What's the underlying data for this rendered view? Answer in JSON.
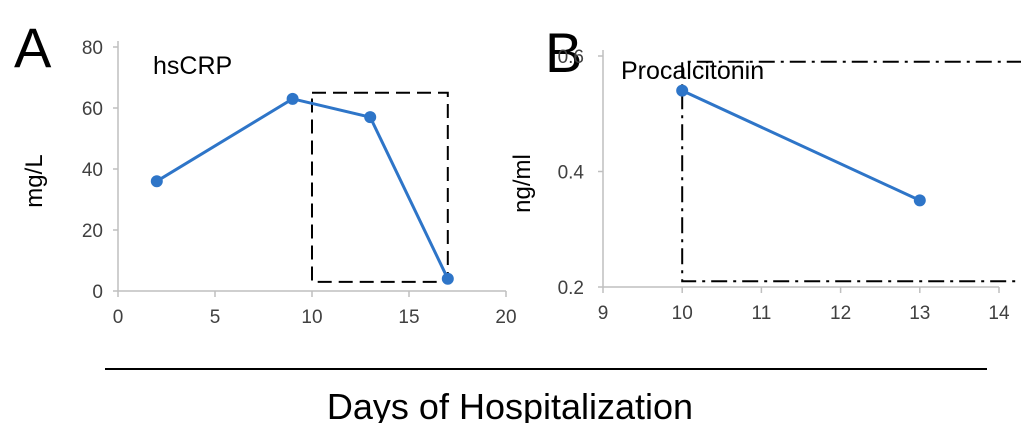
{
  "chart_data": [
    {
      "type": "line",
      "panel_label": "A",
      "title": "hsCRP",
      "ylabel": "mg/L",
      "xlim": [
        0,
        20
      ],
      "ylim": [
        0,
        80
      ],
      "xticks": [
        0,
        5,
        10,
        15,
        20
      ],
      "yticks": [
        0,
        20,
        40,
        60,
        80
      ],
      "color": "#2E75C8",
      "x": [
        2,
        9,
        13,
        17
      ],
      "y": [
        36,
        63,
        57,
        4
      ],
      "highlight_box": {
        "x": [
          10,
          17
        ],
        "y": [
          3,
          65
        ]
      }
    },
    {
      "type": "line",
      "panel_label": "B",
      "title": "Procalcitonin",
      "ylabel": "ng/ml",
      "xlim": [
        9,
        14
      ],
      "ylim": [
        0.2,
        0.6
      ],
      "xticks": [
        9,
        10,
        11,
        12,
        13,
        14
      ],
      "yticks": [
        0.2,
        0.4,
        0.6
      ],
      "color": "#2E75C8",
      "x": [
        10,
        13
      ],
      "y": [
        0.54,
        0.35
      ],
      "highlight_box": {
        "x": [
          10,
          14.3
        ],
        "y": [
          0.21,
          0.59
        ]
      }
    }
  ],
  "shared_xlabel": "Days of Hospitalization"
}
